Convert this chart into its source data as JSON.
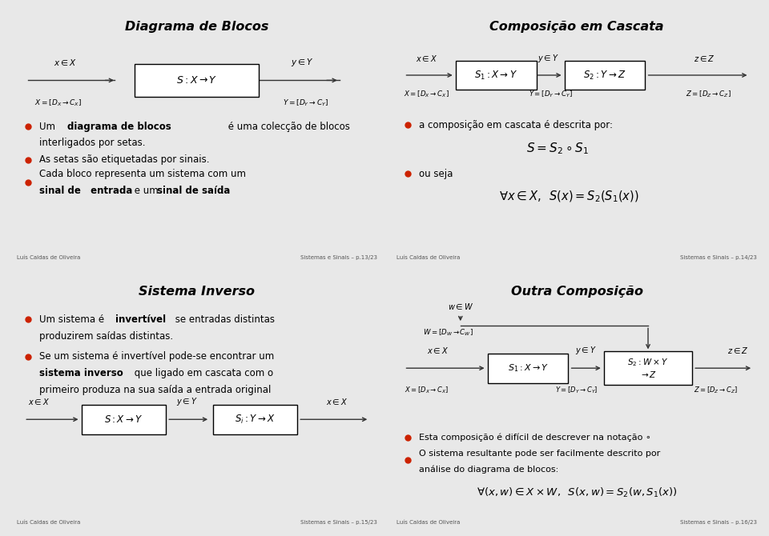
{
  "bg_color": "#e8e8e8",
  "panel_bg": "#ffffff",
  "footer_left": "Luís Caldas de Oliveira",
  "footer_right_tl": "Sistemas e Sinais – p.13/23",
  "footer_right_tr": "Sistemas e Sinais – p.14/23",
  "footer_right_bl": "Sistemas e Sinais – p.15/23",
  "footer_right_br": "Sistemas e Sinais – p.16/23"
}
